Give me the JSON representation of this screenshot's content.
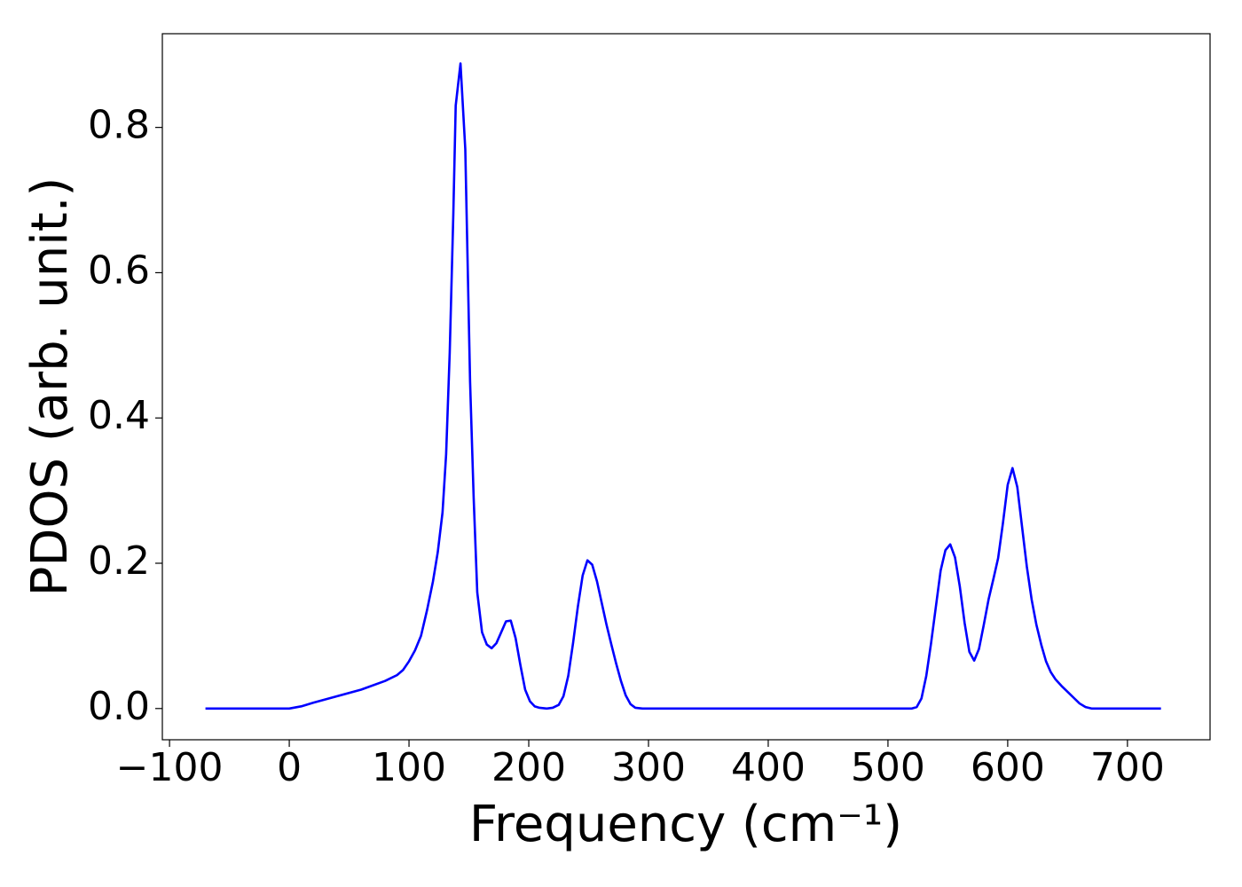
{
  "chart_data": {
    "type": "line",
    "x_label": "Frequency (cm⁻¹)",
    "y_label": "PDOS (arb. unit.)",
    "color": "#0000ff",
    "x": [
      -70,
      0,
      10,
      20,
      40,
      60,
      80,
      90,
      95,
      100,
      105,
      110,
      115,
      120,
      124,
      128,
      131,
      134,
      137,
      139,
      143,
      147,
      151,
      154,
      157,
      161,
      165,
      169,
      173,
      177,
      181,
      185,
      189,
      193,
      197,
      201,
      205,
      209,
      215,
      220,
      225,
      229,
      233,
      237,
      241,
      245,
      249,
      253,
      257,
      261,
      265,
      269,
      273,
      277,
      281,
      285,
      289,
      295,
      520,
      524,
      528,
      532,
      536,
      540,
      544,
      548,
      552,
      556,
      560,
      564,
      568,
      572,
      576,
      580,
      584,
      588,
      592,
      596,
      600,
      604,
      608,
      612,
      616,
      620,
      624,
      628,
      632,
      636,
      640,
      645,
      650,
      655,
      660,
      665,
      670,
      728
    ],
    "values": [
      0,
      0,
      0.003,
      0.008,
      0.017,
      0.026,
      0.038,
      0.046,
      0.053,
      0.065,
      0.08,
      0.1,
      0.135,
      0.175,
      0.215,
      0.27,
      0.35,
      0.49,
      0.68,
      0.83,
      0.888,
      0.77,
      0.45,
      0.29,
      0.16,
      0.105,
      0.088,
      0.083,
      0.09,
      0.105,
      0.12,
      0.121,
      0.097,
      0.06,
      0.026,
      0.01,
      0.003,
      0.001,
      0,
      0.001,
      0.005,
      0.017,
      0.045,
      0.09,
      0.14,
      0.183,
      0.204,
      0.198,
      0.175,
      0.145,
      0.115,
      0.088,
      0.062,
      0.038,
      0.018,
      0.006,
      0.001,
      0,
      0,
      0.002,
      0.014,
      0.045,
      0.09,
      0.14,
      0.19,
      0.218,
      0.226,
      0.208,
      0.168,
      0.118,
      0.078,
      0.066,
      0.082,
      0.115,
      0.15,
      0.178,
      0.207,
      0.255,
      0.308,
      0.331,
      0.305,
      0.25,
      0.195,
      0.15,
      0.115,
      0.088,
      0.065,
      0.05,
      0.04,
      0.031,
      0.023,
      0.015,
      0.007,
      0.002,
      0,
      0
    ],
    "xlim": [
      -106,
      769
    ],
    "ylim": [
      -0.043,
      0.929
    ],
    "xticks": [
      {
        "value": -100,
        "label": "−100"
      },
      0,
      100,
      200,
      300,
      400,
      500,
      600,
      700
    ],
    "yticks": [
      {
        "value": 0,
        "label": "0.0"
      },
      0.2,
      0.4,
      0.6,
      0.8
    ]
  }
}
